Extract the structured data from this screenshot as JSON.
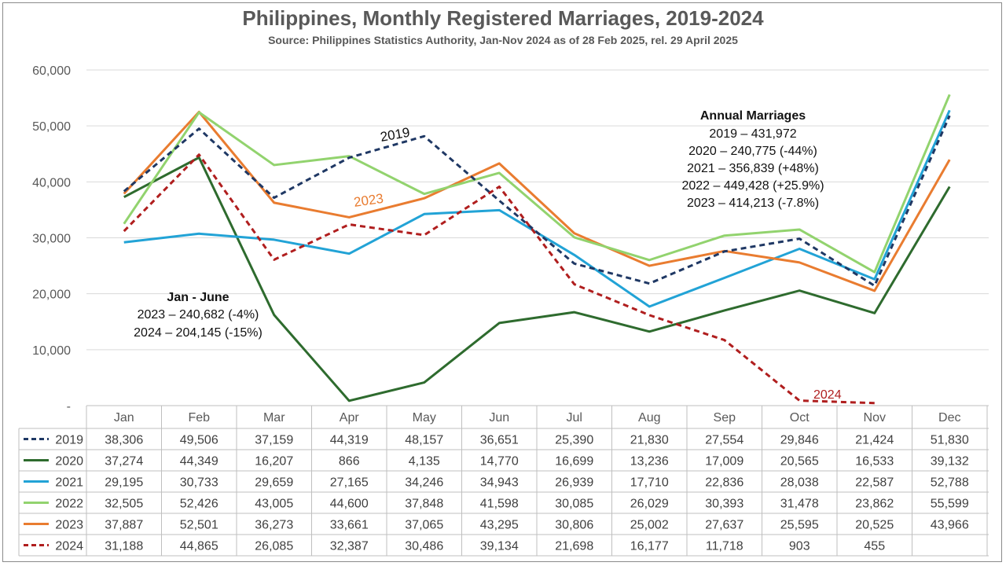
{
  "title": "Philippines, Monthly Registered Marriages, 2019-2024",
  "subtitle": "Source: Philippines Statistics Authority, Jan-Nov 2024 as of 28 Feb 2025, rel. 29 April 2025",
  "annual_box": {
    "heading": "Annual Marriages",
    "lines": [
      "2019 – 431,972",
      "2020 – 240,775 (-44%)",
      "2021 – 356,839 (+48%)",
      "2022 – 449,428 (+25.9%)",
      "2023 – 414,213 (-7.8%)"
    ]
  },
  "jan_june_box": {
    "heading": "Jan - June",
    "lines": [
      "2023 – 240,682 (-4%)",
      "2024 – 204,145 (-15%)"
    ]
  },
  "line_labels": {
    "s2019": "2019",
    "s2023": "2023",
    "s2024": "2024"
  },
  "chart_data": {
    "type": "line",
    "title": "Philippines, Monthly Registered Marriages, 2019-2024",
    "subtitle": "Source: Philippines Statistics Authority, Jan-Nov 2024 as of 28 Feb 2025, rel. 29 April 2025",
    "categories": [
      "Jan",
      "Feb",
      "Mar",
      "Apr",
      "May",
      "Jun",
      "Jul",
      "Aug",
      "Sep",
      "Oct",
      "Nov",
      "Dec"
    ],
    "ylim": [
      0,
      60000
    ],
    "yticks": [
      0,
      10000,
      20000,
      30000,
      40000,
      50000,
      60000
    ],
    "ytick_labels": [
      "-",
      "10,000",
      "20,000",
      "30,000",
      "40,000",
      "50,000",
      "60,000"
    ],
    "grid": true,
    "legend": "data-table",
    "series": [
      {
        "name": "2019",
        "color": "#1f3864",
        "dash": true,
        "values": [
          38306,
          49506,
          37159,
          44319,
          48157,
          36651,
          25390,
          21830,
          27554,
          29846,
          21424,
          51830
        ],
        "labels": [
          "38,306",
          "49,506",
          "37,159",
          "44,319",
          "48,157",
          "36,651",
          "25,390",
          "21,830",
          "27,554",
          "29,846",
          "21,424",
          "51,830"
        ]
      },
      {
        "name": "2020",
        "color": "#2e6b2e",
        "dash": false,
        "values": [
          37274,
          44349,
          16207,
          866,
          4135,
          14770,
          16699,
          13236,
          17009,
          20565,
          16533,
          39132
        ],
        "labels": [
          "37,274",
          "44,349",
          "16,207",
          "866",
          "4,135",
          "14,770",
          "16,699",
          "13,236",
          "17,009",
          "20,565",
          "16,533",
          "39,132"
        ]
      },
      {
        "name": "2021",
        "color": "#22a3d6",
        "dash": false,
        "values": [
          29195,
          30733,
          29659,
          27165,
          34246,
          34943,
          26939,
          17710,
          22836,
          28038,
          22587,
          52788
        ],
        "labels": [
          "29,195",
          "30,733",
          "29,659",
          "27,165",
          "34,246",
          "34,943",
          "26,939",
          "17,710",
          "22,836",
          "28,038",
          "22,587",
          "52,788"
        ]
      },
      {
        "name": "2022",
        "color": "#92d36e",
        "dash": false,
        "values": [
          32505,
          52426,
          43005,
          44600,
          37848,
          41598,
          30085,
          26029,
          30393,
          31478,
          23862,
          55599
        ],
        "labels": [
          "32,505",
          "52,426",
          "43,005",
          "44,600",
          "37,848",
          "41,598",
          "30,085",
          "26,029",
          "30,393",
          "31,478",
          "23,862",
          "55,599"
        ]
      },
      {
        "name": "2023",
        "color": "#e97c30",
        "dash": false,
        "values": [
          37887,
          52501,
          36273,
          33661,
          37065,
          43295,
          30806,
          25002,
          27637,
          25595,
          20525,
          43966
        ],
        "labels": [
          "37,887",
          "52,501",
          "36,273",
          "33,661",
          "37,065",
          "43,295",
          "30,806",
          "25,002",
          "27,637",
          "25,595",
          "20,525",
          "43,966"
        ]
      },
      {
        "name": "2024",
        "color": "#b01e1e",
        "dash": true,
        "values": [
          31188,
          44865,
          26085,
          32387,
          30486,
          39134,
          21698,
          16177,
          11718,
          903,
          455,
          null
        ],
        "labels": [
          "31,188",
          "44,865",
          "26,085",
          "32,387",
          "30,486",
          "39,134",
          "21,698",
          "16,177",
          "11,718",
          "903",
          "455",
          ""
        ]
      }
    ]
  }
}
